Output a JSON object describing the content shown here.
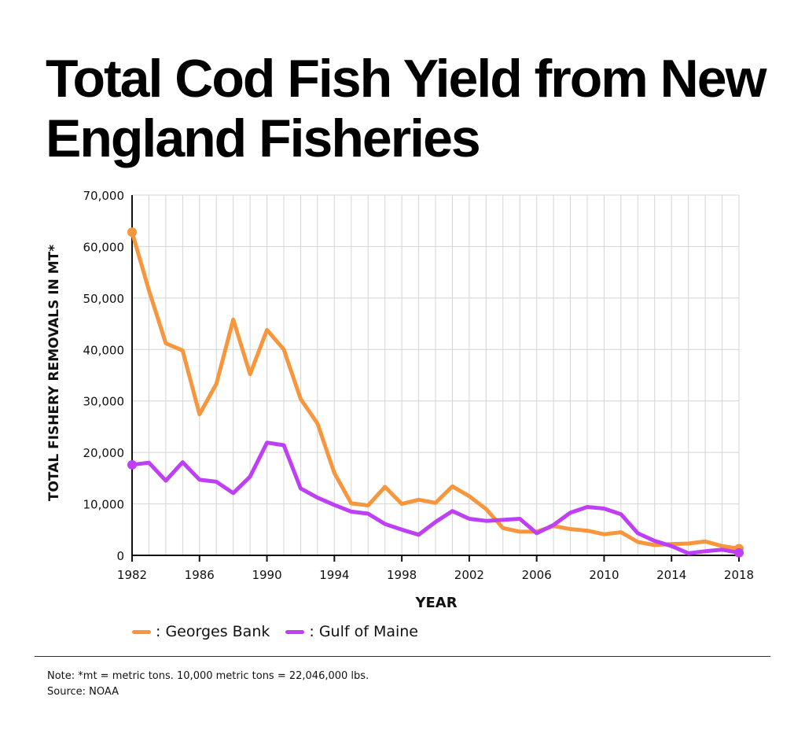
{
  "chart_data": {
    "type": "line",
    "title": "Total Cod Fish Yield from New England Fisheries",
    "xlabel": "YEAR",
    "ylabel": "TOTAL FISHERY REMOVALS IN MT*",
    "xlim": [
      1982,
      2018
    ],
    "ylim": [
      0,
      70000
    ],
    "x_ticks": [
      "1982",
      "1986",
      "1990",
      "1994",
      "1998",
      "2002",
      "2006",
      "2010",
      "2014",
      "2018"
    ],
    "y_ticks": [
      "0",
      "10,000",
      "20,000",
      "30,000",
      "40,000",
      "50,000",
      "60,000",
      "70,000"
    ],
    "grid": true,
    "legend_position": "bottom-left",
    "x": [
      1982,
      1983,
      1984,
      1985,
      1986,
      1987,
      1988,
      1989,
      1990,
      1991,
      1992,
      1993,
      1994,
      1995,
      1996,
      1997,
      1998,
      1999,
      2000,
      2001,
      2002,
      2003,
      2004,
      2005,
      2006,
      2007,
      2008,
      2009,
      2010,
      2011,
      2012,
      2013,
      2014,
      2015,
      2016,
      2017,
      2018
    ],
    "series": [
      {
        "name": ": Georges Bank",
        "color": "#F7963C",
        "values": [
          62800,
          51500,
          41200,
          39800,
          27400,
          33300,
          45800,
          35200,
          43800,
          40000,
          30400,
          25600,
          16000,
          10100,
          9700,
          13300,
          10000,
          10800,
          10200,
          13400,
          11500,
          9000,
          5300,
          4600,
          4600,
          5700,
          5100,
          4800,
          4100,
          4500,
          2600,
          2000,
          2200,
          2300,
          2700,
          1800,
          1300
        ]
      },
      {
        "name": ": Gulf of Maine",
        "color": "#BE3FF5",
        "values": [
          17600,
          18000,
          14500,
          18100,
          14700,
          14300,
          12100,
          15300,
          21900,
          21400,
          13000,
          11200,
          9800,
          8500,
          8100,
          6100,
          5000,
          4000,
          6500,
          8600,
          7100,
          6700,
          6900,
          7100,
          4300,
          5900,
          8300,
          9400,
          9100,
          8000,
          4300,
          2800,
          1800,
          400,
          800,
          1100,
          500
        ]
      }
    ]
  },
  "footnote": {
    "note": "Note: *mt = metric tons. 10,000 metric tons = 22,046,000 lbs.",
    "source": "Source: NOAA"
  }
}
